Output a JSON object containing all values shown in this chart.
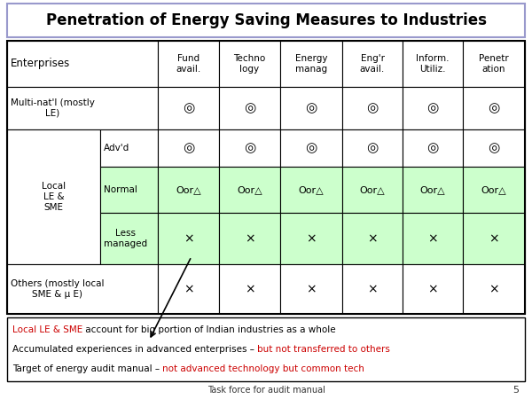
{
  "title": "Penetration of Energy Saving Measures to Industries",
  "title_fontsize": 12,
  "col_headers": [
    "Fund\navail.",
    "Techno\nlogy",
    "Energy\nmanag",
    "Eng'r\navail.",
    "Inform.\nUtiliz.",
    "Penetr\nation"
  ],
  "footnote_lines": [
    [
      {
        "text": "Local LE & SME",
        "color": "#cc0000"
      },
      {
        "text": " account for big portion of Indian industries as a whole",
        "color": "#000000"
      }
    ],
    [
      {
        "text": "Accumulated experiences in advanced enterprises – ",
        "color": "#000000"
      },
      {
        "text": "but not transferred to others",
        "color": "#cc0000"
      }
    ],
    [
      {
        "text": "Target of energy audit manual – ",
        "color": "#000000"
      },
      {
        "text": "not advanced technology but common tech",
        "color": "#cc0000"
      }
    ]
  ],
  "footer_text": "Task force for audit manual",
  "page_number": "5",
  "title_border": "#9999cc",
  "green_bg": "#ccffcc",
  "white_bg": "#ffffff",
  "symbol_double_circle": "◎",
  "symbol_cross": "×",
  "symbol_or": "Oor△"
}
